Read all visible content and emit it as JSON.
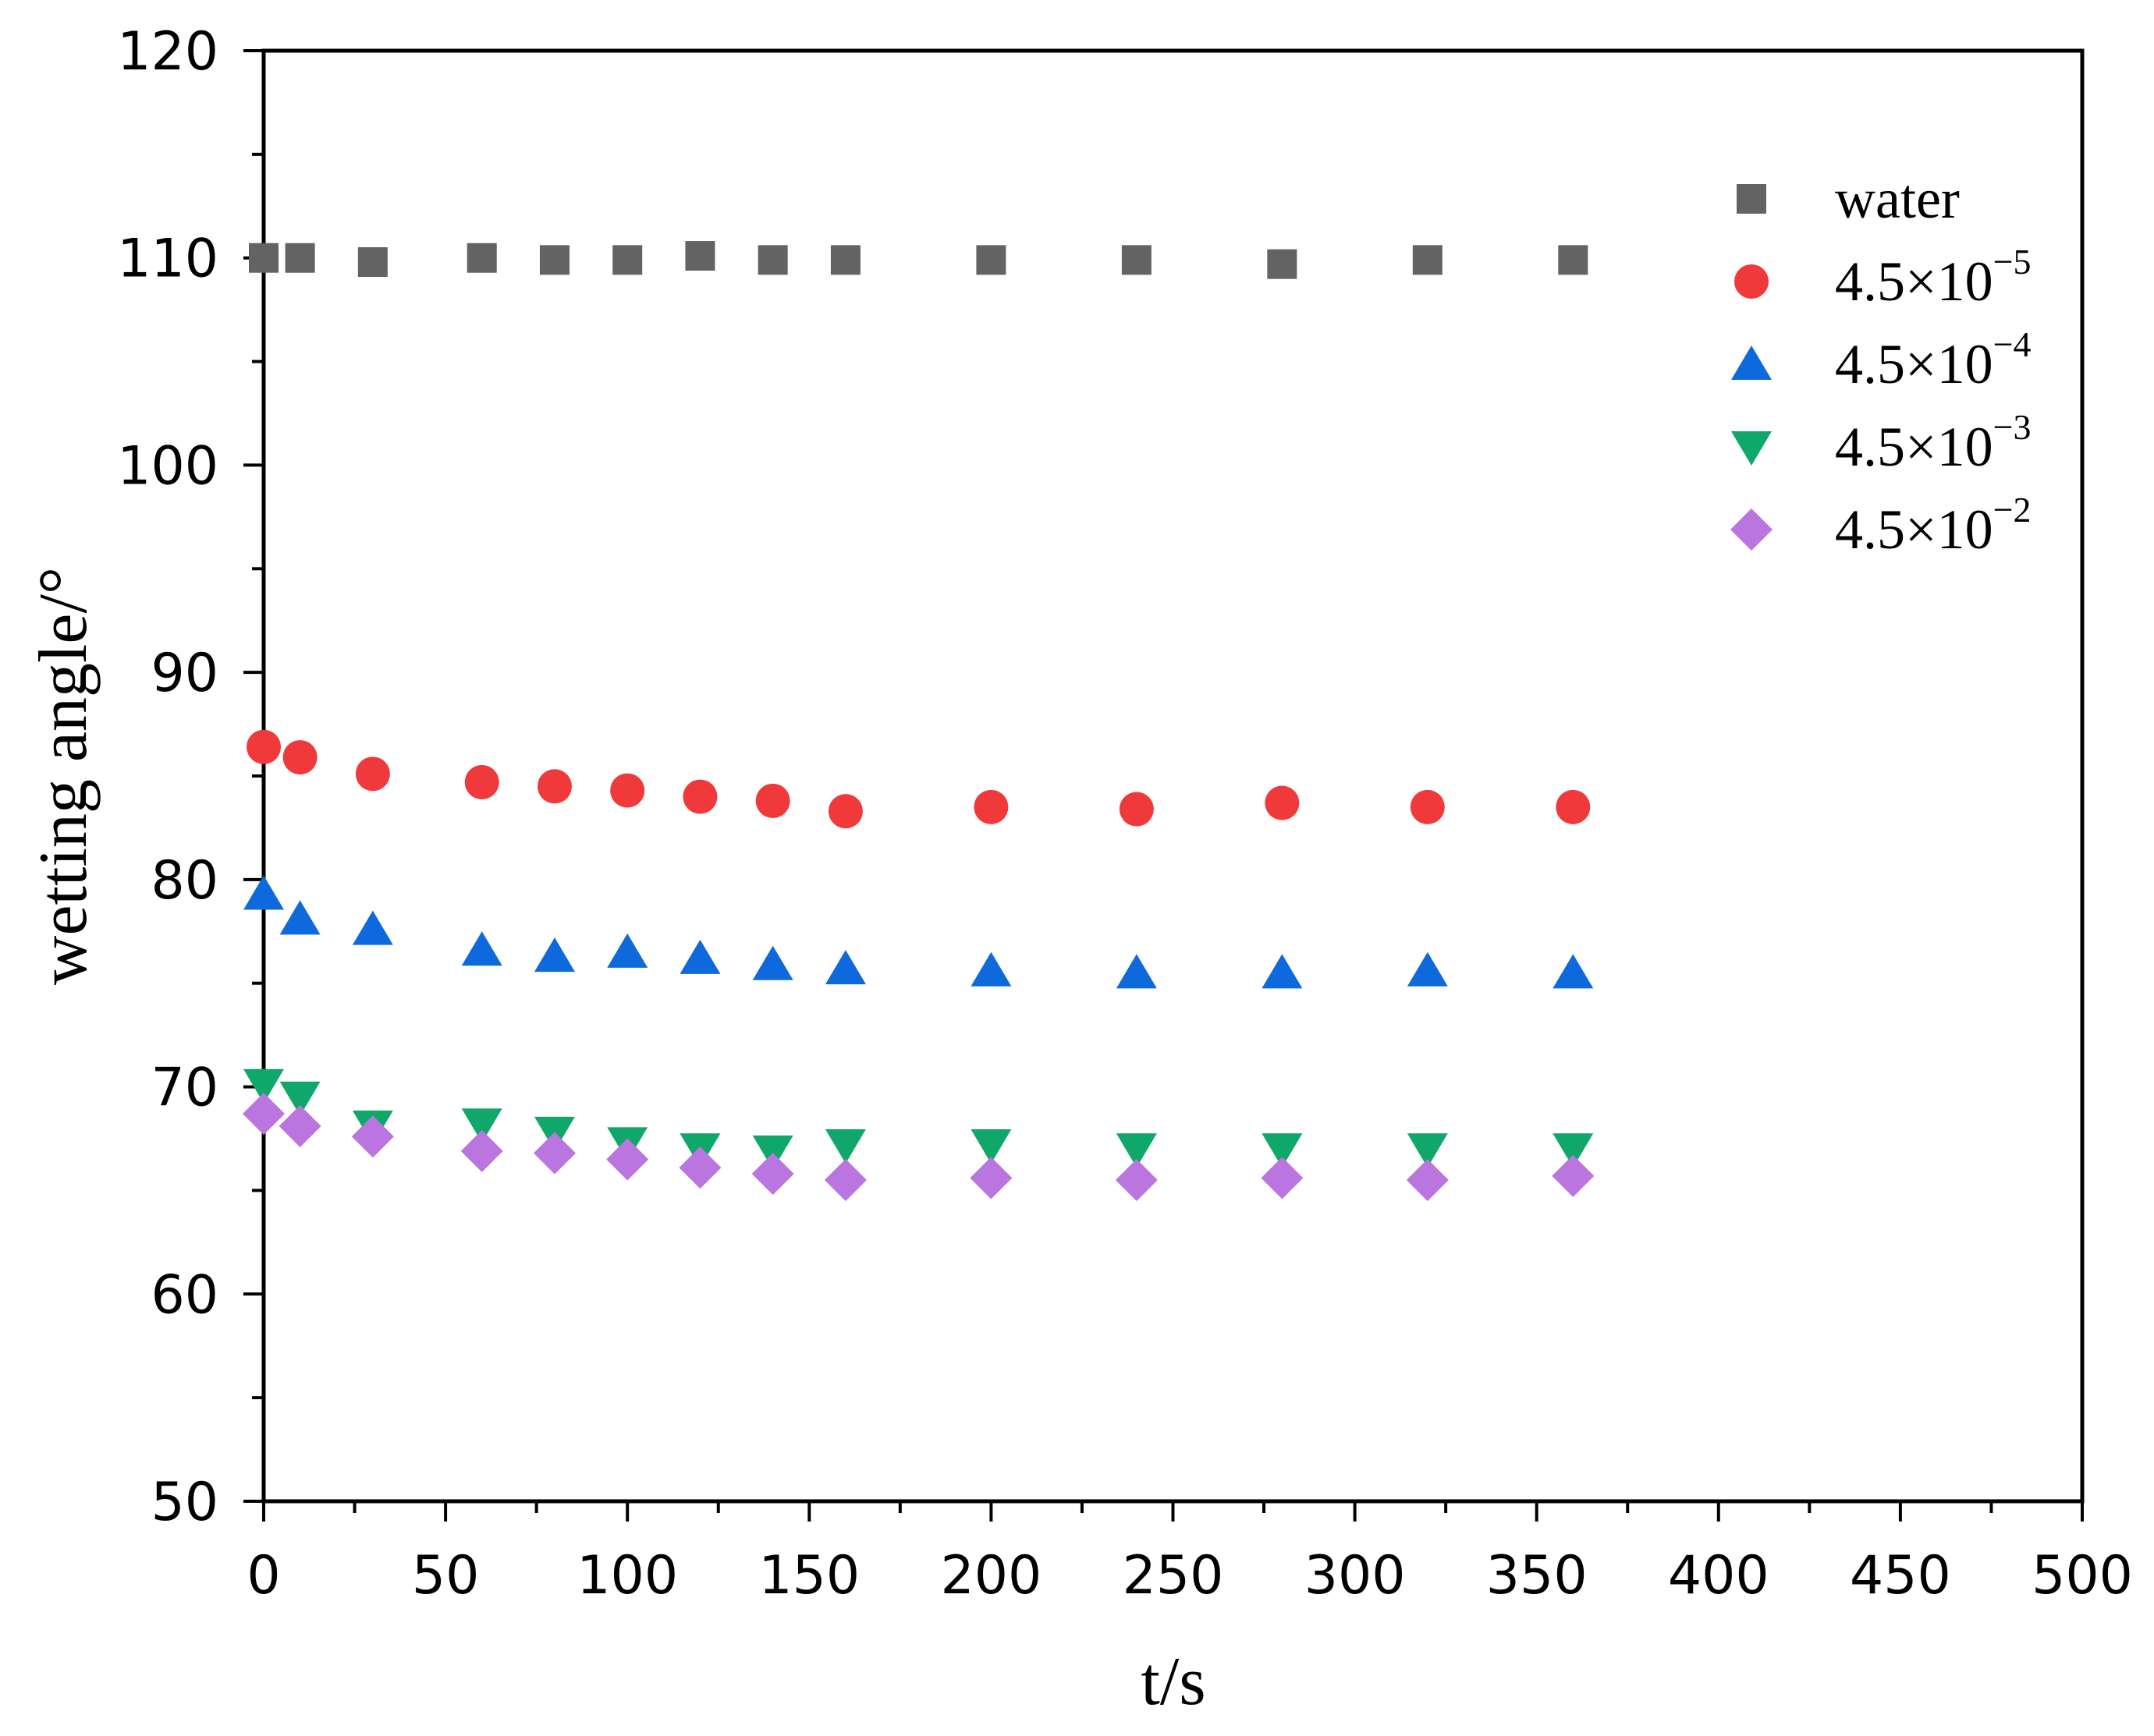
{
  "chart_data": {
    "type": "scatter",
    "title": "",
    "xlabel": "t/s",
    "ylabel": "wetting angle/°",
    "xlim": [
      0,
      500
    ],
    "ylim": [
      50,
      120
    ],
    "xticks": [
      "0",
      "50",
      "100",
      "150",
      "200",
      "250",
      "300",
      "350",
      "400",
      "450",
      "500"
    ],
    "yticks": [
      "50",
      "60",
      "70",
      "80",
      "90",
      "100",
      "110",
      "120"
    ],
    "grid": false,
    "legend_position": "top-right",
    "x": [
      0,
      10,
      30,
      60,
      80,
      100,
      120,
      140,
      160,
      200,
      240,
      280,
      320,
      360
    ],
    "series": [
      {
        "name": "water",
        "base": "",
        "exponent": "",
        "marker": "square",
        "color": "#636363",
        "values": [
          110.0,
          110.0,
          109.8,
          110.0,
          109.9,
          109.9,
          110.1,
          109.9,
          109.9,
          109.9,
          109.9,
          109.7,
          109.9,
          109.9
        ]
      },
      {
        "name": "4.5×10−5",
        "base": "4.5×10",
        "exponent": "−5",
        "marker": "circle",
        "color": "#F0393B",
        "values": [
          86.4,
          85.9,
          85.1,
          84.7,
          84.5,
          84.3,
          84.0,
          83.8,
          83.3,
          83.5,
          83.4,
          83.7,
          83.5,
          83.5
        ]
      },
      {
        "name": "4.5×10−4",
        "base": "4.5×10",
        "exponent": "−4",
        "marker": "triangle-up",
        "color": "#0E6ADC",
        "values": [
          79.3,
          78.1,
          77.6,
          76.6,
          76.3,
          76.5,
          76.2,
          75.9,
          75.7,
          75.6,
          75.5,
          75.5,
          75.6,
          75.5
        ]
      },
      {
        "name": "4.5×10−3",
        "base": "4.5×10",
        "exponent": "−3",
        "marker": "triangle-down",
        "color": "#10A86A",
        "values": [
          70.1,
          69.5,
          68.1,
          68.2,
          67.8,
          67.3,
          67.0,
          66.9,
          67.2,
          67.2,
          67.0,
          67.0,
          67.0,
          67.0
        ]
      },
      {
        "name": "4.5×10−2",
        "base": "4.5×10",
        "exponent": "−2",
        "marker": "diamond",
        "color": "#BB75E0",
        "values": [
          68.7,
          68.1,
          67.6,
          66.9,
          66.8,
          66.5,
          66.1,
          65.8,
          65.5,
          65.6,
          65.5,
          65.6,
          65.5,
          65.7
        ]
      }
    ]
  }
}
